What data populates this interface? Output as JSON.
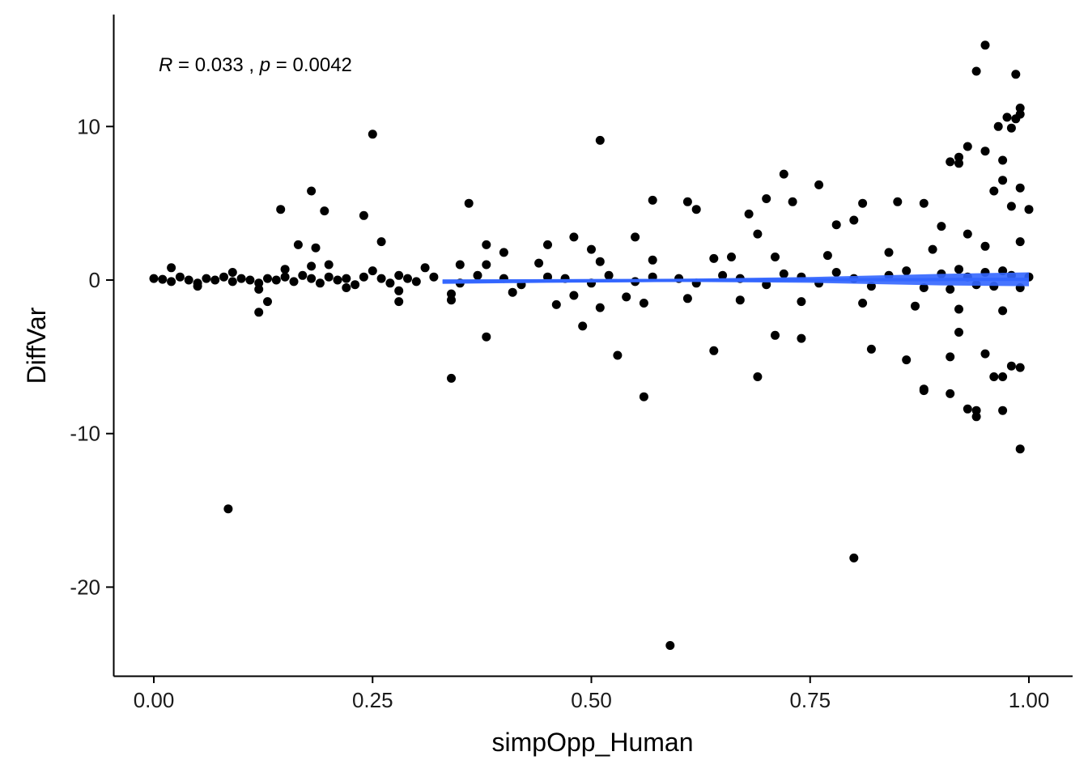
{
  "chart_data": {
    "type": "scatter",
    "title": "",
    "xlabel": "simpOpp_Human",
    "ylabel": "DiffVar",
    "xlim": [
      -0.04,
      1.04
    ],
    "ylim": [
      -25.5,
      17.3
    ],
    "x_ticks": [
      0.0,
      0.25,
      0.5,
      0.75,
      1.0
    ],
    "x_tick_labels": [
      "0.00",
      "0.25",
      "0.50",
      "0.75",
      "1.00"
    ],
    "y_ticks": [
      -20,
      -10,
      0,
      10
    ],
    "y_tick_labels": [
      "-20",
      "-10",
      "0",
      "10"
    ],
    "grid": false,
    "legend": "none",
    "annotation": {
      "r_symbol": "R",
      "r_value": "= 0.033 ,",
      "p_symbol": "p",
      "p_value": "= 0.0042"
    },
    "point_color": "#000000",
    "fit_color": "#3366FF",
    "fit_line": {
      "x": [
        0.33,
        0.45,
        0.6,
        0.75,
        0.9,
        1.0
      ],
      "y": [
        -0.1,
        -0.06,
        -0.02,
        0.01,
        0.03,
        0.05
      ],
      "band_lower": [
        -0.25,
        -0.18,
        -0.12,
        -0.18,
        -0.35,
        -0.4
      ],
      "band_upper": [
        0.05,
        0.06,
        0.08,
        0.2,
        0.4,
        0.5
      ]
    },
    "points": {
      "x": [
        0.0,
        0.01,
        0.02,
        0.03,
        0.04,
        0.05,
        0.06,
        0.07,
        0.08,
        0.09,
        0.1,
        0.11,
        0.12,
        0.13,
        0.14,
        0.15,
        0.16,
        0.17,
        0.18,
        0.19,
        0.2,
        0.21,
        0.22,
        0.23,
        0.24,
        0.26,
        0.27,
        0.28,
        0.29,
        0.3,
        0.32,
        0.35,
        0.37,
        0.4,
        0.42,
        0.45,
        0.47,
        0.5,
        0.52,
        0.55,
        0.57,
        0.6,
        0.62,
        0.65,
        0.67,
        0.7,
        0.72,
        0.74,
        0.76,
        0.78,
        0.8,
        0.82,
        0.84,
        0.86,
        0.88,
        0.9,
        0.91,
        0.92,
        0.93,
        0.94,
        0.95,
        0.96,
        0.97,
        0.98,
        0.99,
        1.0,
        0.02,
        0.05,
        0.09,
        0.12,
        0.15,
        0.18,
        0.22,
        0.25,
        0.28,
        0.31,
        0.34,
        0.38,
        0.41,
        0.44,
        0.48,
        0.51,
        0.54,
        0.57,
        0.61,
        0.64,
        0.67,
        0.71,
        0.74,
        0.77,
        0.81,
        0.84,
        0.87,
        0.89,
        0.92,
        0.95,
        0.97,
        0.99,
        0.145,
        0.165,
        0.18,
        0.185,
        0.195,
        0.24,
        0.26,
        0.2,
        0.35,
        0.36,
        0.38,
        0.4,
        0.45,
        0.48,
        0.5,
        0.55,
        0.57,
        0.61,
        0.62,
        0.66,
        0.68,
        0.69,
        0.7,
        0.72,
        0.73,
        0.76,
        0.78,
        0.8,
        0.81,
        0.85,
        0.88,
        0.9,
        0.92,
        0.93,
        0.95,
        0.96,
        0.97,
        0.98,
        0.99,
        1.0,
        0.12,
        0.13,
        0.28,
        0.34,
        0.38,
        0.46,
        0.49,
        0.51,
        0.53,
        0.56,
        0.64,
        0.69,
        0.71,
        0.74,
        0.82,
        0.86,
        0.88,
        0.91,
        0.92,
        0.94,
        0.95,
        0.96,
        0.97,
        0.98,
        0.99,
        0.25,
        0.51,
        0.94,
        0.93,
        0.985,
        0.99,
        0.975,
        0.965,
        0.92,
        0.91,
        0.985,
        0.98,
        0.99,
        0.95,
        0.97,
        0.085,
        0.34,
        0.56,
        0.8,
        0.59,
        0.91,
        0.94,
        0.97,
        0.99,
        0.88,
        0.93
      ],
      "y": [
        0.1,
        0.05,
        -0.1,
        0.2,
        0.0,
        -0.2,
        0.1,
        0.0,
        0.2,
        -0.1,
        0.1,
        0.0,
        -0.2,
        0.1,
        0.0,
        0.2,
        -0.1,
        0.3,
        0.1,
        -0.2,
        0.2,
        0.0,
        0.1,
        -0.3,
        0.2,
        0.1,
        -0.2,
        0.3,
        0.1,
        -0.1,
        0.2,
        -0.2,
        0.3,
        0.1,
        -0.3,
        0.2,
        0.1,
        -0.2,
        0.3,
        -0.1,
        0.2,
        0.1,
        -0.2,
        0.3,
        0.1,
        -0.3,
        0.4,
        0.2,
        -0.2,
        0.5,
        0.1,
        -0.4,
        0.3,
        0.6,
        -0.5,
        0.4,
        -0.6,
        0.7,
        0.2,
        -0.3,
        0.5,
        -0.4,
        0.6,
        0.3,
        -0.5,
        0.2,
        0.8,
        -0.4,
        0.5,
        -0.6,
        0.7,
        0.9,
        -0.5,
        0.6,
        -0.7,
        0.8,
        -0.9,
        1.0,
        -0.8,
        1.1,
        -1.0,
        1.2,
        -1.1,
        1.3,
        -1.2,
        1.4,
        -1.3,
        1.5,
        -1.4,
        1.6,
        -1.5,
        1.8,
        -1.7,
        2.0,
        -1.9,
        2.2,
        -2.0,
        2.5,
        4.6,
        2.3,
        5.8,
        2.1,
        4.5,
        4.2,
        2.5,
        1.0,
        1.0,
        5.0,
        2.3,
        1.8,
        2.3,
        2.8,
        2.0,
        2.8,
        5.2,
        5.1,
        4.6,
        1.5,
        4.3,
        3.0,
        5.3,
        6.9,
        5.1,
        6.2,
        3.6,
        3.9,
        5.0,
        5.1,
        5.0,
        3.5,
        7.6,
        3.0,
        8.4,
        5.8,
        7.8,
        4.8,
        6.0,
        4.6,
        -2.1,
        -1.4,
        -1.4,
        -1.3,
        -3.7,
        -1.6,
        -3.0,
        -1.8,
        -4.9,
        -1.5,
        -4.6,
        -6.3,
        -3.6,
        -3.8,
        -4.5,
        -5.2,
        -7.2,
        -5.0,
        -3.4,
        -8.5,
        -4.8,
        -6.3,
        -8.5,
        -5.6,
        -5.7,
        9.5,
        9.1,
        13.6,
        8.7,
        13.4,
        11.2,
        10.6,
        10.0,
        8.0,
        7.7,
        10.5,
        9.9,
        10.8,
        15.3,
        6.5,
        -14.9,
        -6.4,
        -7.6,
        -18.1,
        -23.8,
        -7.4,
        -8.9,
        -6.3,
        -11.0,
        -7.1,
        -8.4
      ]
    }
  }
}
